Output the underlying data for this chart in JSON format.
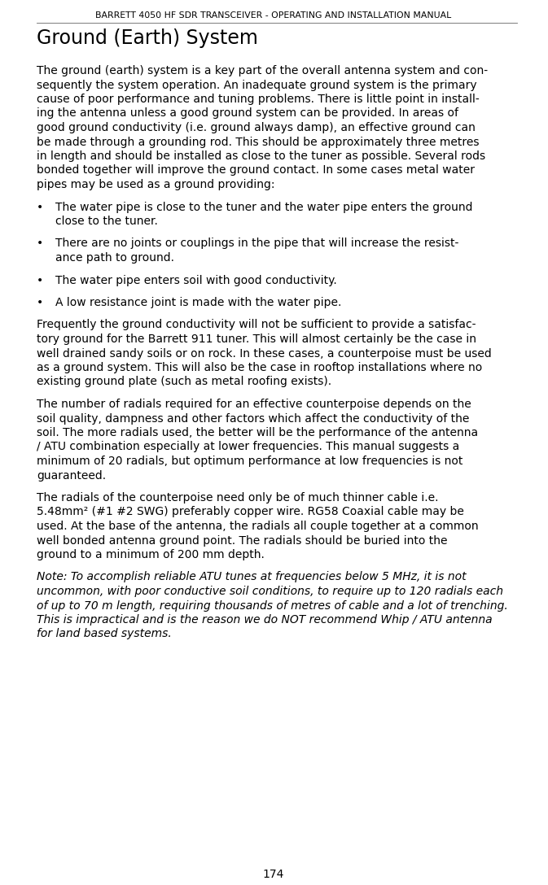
{
  "page_number": "174",
  "header": "BARRETT 4050 HF SDR TRANSCEIVER - OPERATING AND INSTALLATION MANUAL",
  "section_title": "Ground (Earth) System",
  "para1": "The ground (earth) system is a key part of the overall antenna system and con-sequently the system operation. An inadequate ground system is the primary cause of poor performance and tuning problems. There is little point in install-ing the antenna unless a good ground system can be provided. In areas of good ground conductivity (i.e. ground always damp), an effective ground can be made through a grounding rod. This should be approximately three metres in length and should be installed as close to the tuner as possible. Several rods bonded together will improve the ground contact. In some cases metal water pipes may be used as a ground providing:",
  "bullet1_line1": "The water pipe is close to the tuner and the water pipe enters the ground",
  "bullet1_line2": "close to the tuner.",
  "bullet2_line1": "There are no joints or couplings in the pipe that will increase the resist-",
  "bullet2_line2": "ance path to ground.",
  "bullet3": "The water pipe enters soil with good conductivity.",
  "bullet4": "A low resistance joint is made with the water pipe.",
  "para2": "Frequently the ground conductivity will not be sufficient to provide a satisfac-tory ground for the Barrett 911 tuner. This will almost certainly be the case in well drained sandy soils or on rock. In these cases, a counterpoise must be used as a ground system. This will also be the case in rooftop installations where no existing ground plate (such as metal roofing exists).",
  "para3": "The number of radials required for an effective counterpoise depends on the soil quality, dampness and other factors which affect the conductivity of the soil. The more radials used, the better will be the performance of the antenna / ATU combination especially at lower frequencies. This manual suggests a minimum of 20 radials, but optimum performance at low frequencies is not guaranteed.",
  "para4_line1": "The radials of the counterpoise need only be of much thinner cable i.e.",
  "para4_line2": "5.48mm² (#1 #2 SWG) preferably copper wire. RG58 Coaxial cable may be",
  "para4_line3": "used. At the base of the antenna, the radials all couple together at a common",
  "para4_line4": "well bonded antenna ground point. The radials should be buried into the",
  "para4_line5": "ground to a minimum of 200 mm depth.",
  "note_line1": "Note: To accomplish reliable ATU tunes at frequencies below 5 MHz, it is not",
  "note_line2": "uncommon, with poor conductive soil conditions, to require up to 120 radials each",
  "note_line3": "of up to 70 m length, requiring thousands of metres of cable and a lot of trenching.",
  "note_line4": "This is impractical and is the reason we do NOT recommend Whip / ATU antenna",
  "note_line5": "for land based systems.",
  "bg_color": "#ffffff",
  "text_color": "#000000",
  "header_color": "#000000",
  "bullet_color": "#000000"
}
